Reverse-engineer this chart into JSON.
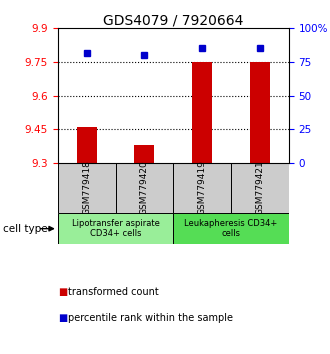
{
  "title": "GDS4079 / 7920664",
  "samples": [
    "GSM779418",
    "GSM779420",
    "GSM779419",
    "GSM779421"
  ],
  "transformed_counts": [
    9.46,
    9.38,
    9.75,
    9.75
  ],
  "percentile_ranks": [
    82,
    80,
    85,
    85
  ],
  "ylim": [
    9.3,
    9.9
  ],
  "ylim_right": [
    0,
    100
  ],
  "yticks_left": [
    9.3,
    9.45,
    9.6,
    9.75,
    9.9
  ],
  "yticks_right": [
    0,
    25,
    50,
    75,
    100
  ],
  "yticks_right_labels": [
    "0",
    "25",
    "50",
    "75",
    "100%"
  ],
  "hlines": [
    9.45,
    9.6,
    9.75
  ],
  "bar_color": "#cc0000",
  "dot_color": "#0000cc",
  "bar_bottom": 9.3,
  "cell_type_groups": [
    {
      "label": "Lipotransfer aspirate\nCD34+ cells",
      "samples": [
        0,
        1
      ],
      "color": "#99ee99"
    },
    {
      "label": "Leukapheresis CD34+\ncells",
      "samples": [
        2,
        3
      ],
      "color": "#55dd55"
    }
  ],
  "cell_type_label": "cell type",
  "legend_items": [
    {
      "color": "#cc0000",
      "label": "transformed count"
    },
    {
      "color": "#0000cc",
      "label": "percentile rank within the sample"
    }
  ],
  "sample_box_color": "#cccccc",
  "title_fontsize": 10,
  "tick_fontsize": 7.5,
  "sample_fontsize": 6.5,
  "celltype_fontsize": 6,
  "legend_fontsize": 7,
  "bar_width": 0.35
}
